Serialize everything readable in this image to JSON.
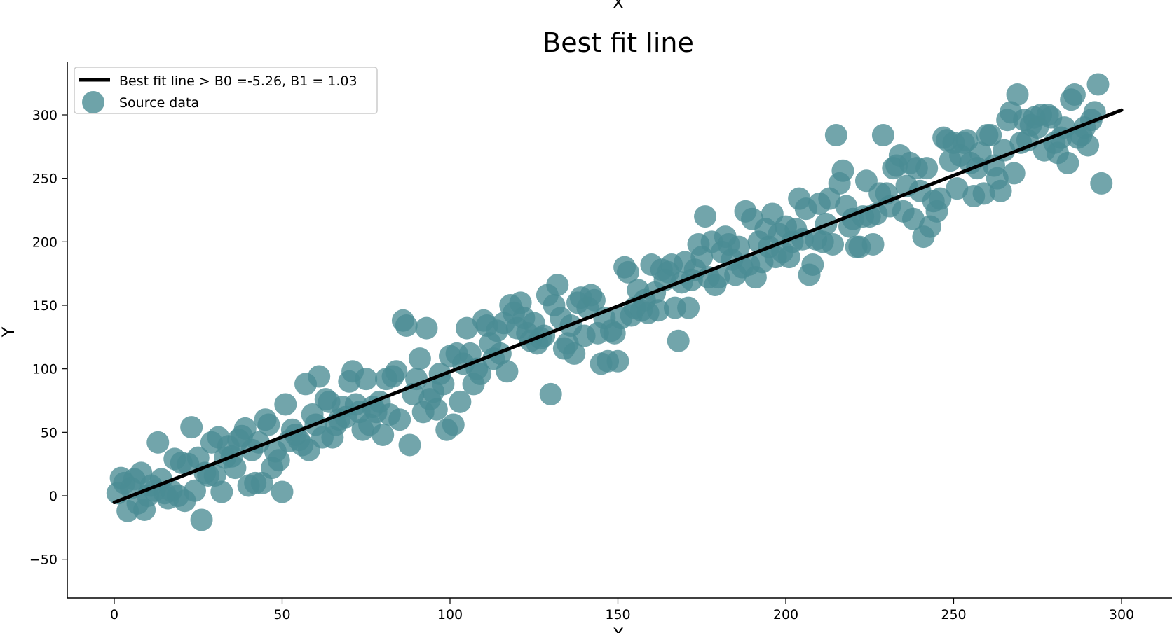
{
  "chart_data": {
    "type": "scatter",
    "title": "Best fit line",
    "xlabel": "X",
    "top_xlabel": "X",
    "ylabel": "Y",
    "xlim": [
      -14,
      315
    ],
    "ylim": [
      -80,
      345
    ],
    "xticks": [
      0,
      50,
      100,
      150,
      200,
      250,
      300
    ],
    "yticks": [
      -50,
      0,
      50,
      100,
      150,
      200,
      250,
      300
    ],
    "legend_position": "top-left",
    "grid": false,
    "colors": {
      "points": "#4a8c94",
      "line": "#000000",
      "axis": "#000000",
      "legend_border": "#cccccc"
    },
    "fit_line": {
      "name": "Best fit line > B0 =-5.26, B1 = 1.03",
      "b0": -5.26,
      "b1": 1.03,
      "x_range": [
        0,
        300
      ]
    },
    "series": [
      {
        "name": "Source data",
        "points": [
          [
            1,
            2
          ],
          [
            2,
            14
          ],
          [
            3,
            10
          ],
          [
            4,
            -12
          ],
          [
            5,
            6
          ],
          [
            6,
            13
          ],
          [
            7,
            -6
          ],
          [
            8,
            18
          ],
          [
            9,
            -11
          ],
          [
            10,
            0
          ],
          [
            11,
            8
          ],
          [
            12,
            4
          ],
          [
            13,
            42
          ],
          [
            14,
            13
          ],
          [
            15,
            2
          ],
          [
            16,
            -2
          ],
          [
            17,
            4
          ],
          [
            18,
            29
          ],
          [
            19,
            0
          ],
          [
            20,
            26
          ],
          [
            21,
            -4
          ],
          [
            22,
            25
          ],
          [
            23,
            54
          ],
          [
            24,
            4
          ],
          [
            25,
            30
          ],
          [
            26,
            -19
          ],
          [
            27,
            18
          ],
          [
            28,
            16
          ],
          [
            29,
            42
          ],
          [
            30,
            16
          ],
          [
            31,
            46
          ],
          [
            32,
            3
          ],
          [
            33,
            30
          ],
          [
            34,
            39
          ],
          [
            35,
            31
          ],
          [
            36,
            22
          ],
          [
            37,
            44
          ],
          [
            38,
            47
          ],
          [
            39,
            53
          ],
          [
            40,
            8
          ],
          [
            41,
            36
          ],
          [
            42,
            10
          ],
          [
            43,
            42
          ],
          [
            44,
            10
          ],
          [
            45,
            60
          ],
          [
            46,
            56
          ],
          [
            47,
            22
          ],
          [
            48,
            35
          ],
          [
            49,
            28
          ],
          [
            50,
            3
          ],
          [
            51,
            72
          ],
          [
            52,
            43
          ],
          [
            53,
            52
          ],
          [
            54,
            48
          ],
          [
            55,
            44
          ],
          [
            56,
            40
          ],
          [
            57,
            88
          ],
          [
            58,
            36
          ],
          [
            59,
            64
          ],
          [
            60,
            56
          ],
          [
            61,
            94
          ],
          [
            62,
            46
          ],
          [
            63,
            76
          ],
          [
            64,
            74
          ],
          [
            65,
            46
          ],
          [
            66,
            56
          ],
          [
            67,
            60
          ],
          [
            68,
            70
          ],
          [
            69,
            62
          ],
          [
            70,
            90
          ],
          [
            71,
            98
          ],
          [
            72,
            72
          ],
          [
            73,
            66
          ],
          [
            74,
            52
          ],
          [
            75,
            92
          ],
          [
            76,
            56
          ],
          [
            77,
            70
          ],
          [
            78,
            66
          ],
          [
            79,
            74
          ],
          [
            80,
            48
          ],
          [
            81,
            92
          ],
          [
            82,
            64
          ],
          [
            83,
            94
          ],
          [
            84,
            98
          ],
          [
            85,
            60
          ],
          [
            86,
            138
          ],
          [
            87,
            134
          ],
          [
            88,
            40
          ],
          [
            89,
            80
          ],
          [
            90,
            92
          ],
          [
            91,
            108
          ],
          [
            92,
            66
          ],
          [
            93,
            132
          ],
          [
            94,
            76
          ],
          [
            95,
            82
          ],
          [
            96,
            68
          ],
          [
            97,
            96
          ],
          [
            98,
            88
          ],
          [
            99,
            52
          ],
          [
            100,
            110
          ],
          [
            101,
            56
          ],
          [
            102,
            112
          ],
          [
            103,
            74
          ],
          [
            104,
            104
          ],
          [
            105,
            132
          ],
          [
            106,
            112
          ],
          [
            107,
            88
          ],
          [
            108,
            100
          ],
          [
            109,
            96
          ],
          [
            110,
            138
          ],
          [
            111,
            134
          ],
          [
            112,
            120
          ],
          [
            113,
            108
          ],
          [
            114,
            130
          ],
          [
            115,
            112
          ],
          [
            116,
            136
          ],
          [
            117,
            98
          ],
          [
            118,
            150
          ],
          [
            119,
            144
          ],
          [
            120,
            132
          ],
          [
            121,
            152
          ],
          [
            122,
            140
          ],
          [
            123,
            128
          ],
          [
            124,
            122
          ],
          [
            125,
            136
          ],
          [
            126,
            120
          ],
          [
            127,
            124
          ],
          [
            128,
            126
          ],
          [
            129,
            158
          ],
          [
            130,
            80
          ],
          [
            131,
            150
          ],
          [
            132,
            166
          ],
          [
            133,
            140
          ],
          [
            134,
            116
          ],
          [
            135,
            120
          ],
          [
            136,
            134
          ],
          [
            137,
            112
          ],
          [
            138,
            152
          ],
          [
            139,
            156
          ],
          [
            140,
            126
          ],
          [
            141,
            148
          ],
          [
            142,
            158
          ],
          [
            143,
            154
          ],
          [
            144,
            128
          ],
          [
            145,
            104
          ],
          [
            146,
            140
          ],
          [
            147,
            106
          ],
          [
            148,
            130
          ],
          [
            149,
            128
          ],
          [
            150,
            106
          ],
          [
            151,
            140
          ],
          [
            152,
            180
          ],
          [
            153,
            176
          ],
          [
            154,
            142
          ],
          [
            155,
            148
          ],
          [
            156,
            162
          ],
          [
            157,
            146
          ],
          [
            158,
            154
          ],
          [
            159,
            144
          ],
          [
            160,
            182
          ],
          [
            161,
            160
          ],
          [
            162,
            146
          ],
          [
            163,
            178
          ],
          [
            164,
            170
          ],
          [
            165,
            176
          ],
          [
            166,
            182
          ],
          [
            167,
            148
          ],
          [
            168,
            122
          ],
          [
            169,
            168
          ],
          [
            170,
            184
          ],
          [
            171,
            148
          ],
          [
            172,
            170
          ],
          [
            173,
            178
          ],
          [
            174,
            198
          ],
          [
            175,
            188
          ],
          [
            176,
            220
          ],
          [
            177,
            172
          ],
          [
            178,
            200
          ],
          [
            179,
            166
          ],
          [
            180,
            172
          ],
          [
            181,
            192
          ],
          [
            182,
            204
          ],
          [
            183,
            198
          ],
          [
            184,
            186
          ],
          [
            185,
            174
          ],
          [
            186,
            196
          ],
          [
            187,
            180
          ],
          [
            188,
            224
          ],
          [
            189,
            182
          ],
          [
            190,
            218
          ],
          [
            191,
            172
          ],
          [
            192,
            200
          ],
          [
            193,
            184
          ],
          [
            194,
            210
          ],
          [
            195,
            196
          ],
          [
            196,
            222
          ],
          [
            197,
            188
          ],
          [
            198,
            206
          ],
          [
            199,
            192
          ],
          [
            200,
            212
          ],
          [
            201,
            188
          ],
          [
            202,
            200
          ],
          [
            203,
            210
          ],
          [
            204,
            234
          ],
          [
            205,
            202
          ],
          [
            206,
            226
          ],
          [
            207,
            174
          ],
          [
            208,
            182
          ],
          [
            209,
            202
          ],
          [
            210,
            230
          ],
          [
            211,
            200
          ],
          [
            212,
            214
          ],
          [
            213,
            234
          ],
          [
            214,
            198
          ],
          [
            215,
            284
          ],
          [
            216,
            246
          ],
          [
            217,
            256
          ],
          [
            218,
            228
          ],
          [
            219,
            212
          ],
          [
            220,
            218
          ],
          [
            221,
            196
          ],
          [
            222,
            196
          ],
          [
            223,
            220
          ],
          [
            224,
            248
          ],
          [
            225,
            220
          ],
          [
            226,
            198
          ],
          [
            227,
            222
          ],
          [
            228,
            238
          ],
          [
            229,
            284
          ],
          [
            230,
            238
          ],
          [
            231,
            228
          ],
          [
            232,
            258
          ],
          [
            233,
            260
          ],
          [
            234,
            268
          ],
          [
            235,
            224
          ],
          [
            236,
            244
          ],
          [
            237,
            262
          ],
          [
            238,
            218
          ],
          [
            239,
            258
          ],
          [
            240,
            240
          ],
          [
            241,
            204
          ],
          [
            242,
            258
          ],
          [
            243,
            212
          ],
          [
            244,
            232
          ],
          [
            245,
            224
          ],
          [
            246,
            234
          ],
          [
            247,
            282
          ],
          [
            248,
            280
          ],
          [
            249,
            264
          ],
          [
            250,
            278
          ],
          [
            251,
            242
          ],
          [
            252,
            268
          ],
          [
            253,
            278
          ],
          [
            254,
            280
          ],
          [
            255,
            262
          ],
          [
            256,
            236
          ],
          [
            257,
            258
          ],
          [
            258,
            270
          ],
          [
            259,
            238
          ],
          [
            260,
            284
          ],
          [
            261,
            284
          ],
          [
            262,
            260
          ],
          [
            263,
            250
          ],
          [
            264,
            240
          ],
          [
            265,
            272
          ],
          [
            266,
            296
          ],
          [
            267,
            302
          ],
          [
            268,
            254
          ],
          [
            269,
            316
          ],
          [
            270,
            278
          ],
          [
            271,
            296
          ],
          [
            272,
            280
          ],
          [
            273,
            292
          ],
          [
            274,
            298
          ],
          [
            275,
            290
          ],
          [
            276,
            300
          ],
          [
            277,
            272
          ],
          [
            278,
            300
          ],
          [
            279,
            298
          ],
          [
            280,
            278
          ],
          [
            281,
            270
          ],
          [
            282,
            282
          ],
          [
            283,
            290
          ],
          [
            284,
            262
          ],
          [
            285,
            312
          ],
          [
            286,
            316
          ],
          [
            287,
            282
          ],
          [
            288,
            284
          ],
          [
            289,
            290
          ],
          [
            290,
            276
          ],
          [
            291,
            296
          ],
          [
            292,
            302
          ],
          [
            293,
            324
          ],
          [
            294,
            246
          ]
        ]
      }
    ]
  }
}
